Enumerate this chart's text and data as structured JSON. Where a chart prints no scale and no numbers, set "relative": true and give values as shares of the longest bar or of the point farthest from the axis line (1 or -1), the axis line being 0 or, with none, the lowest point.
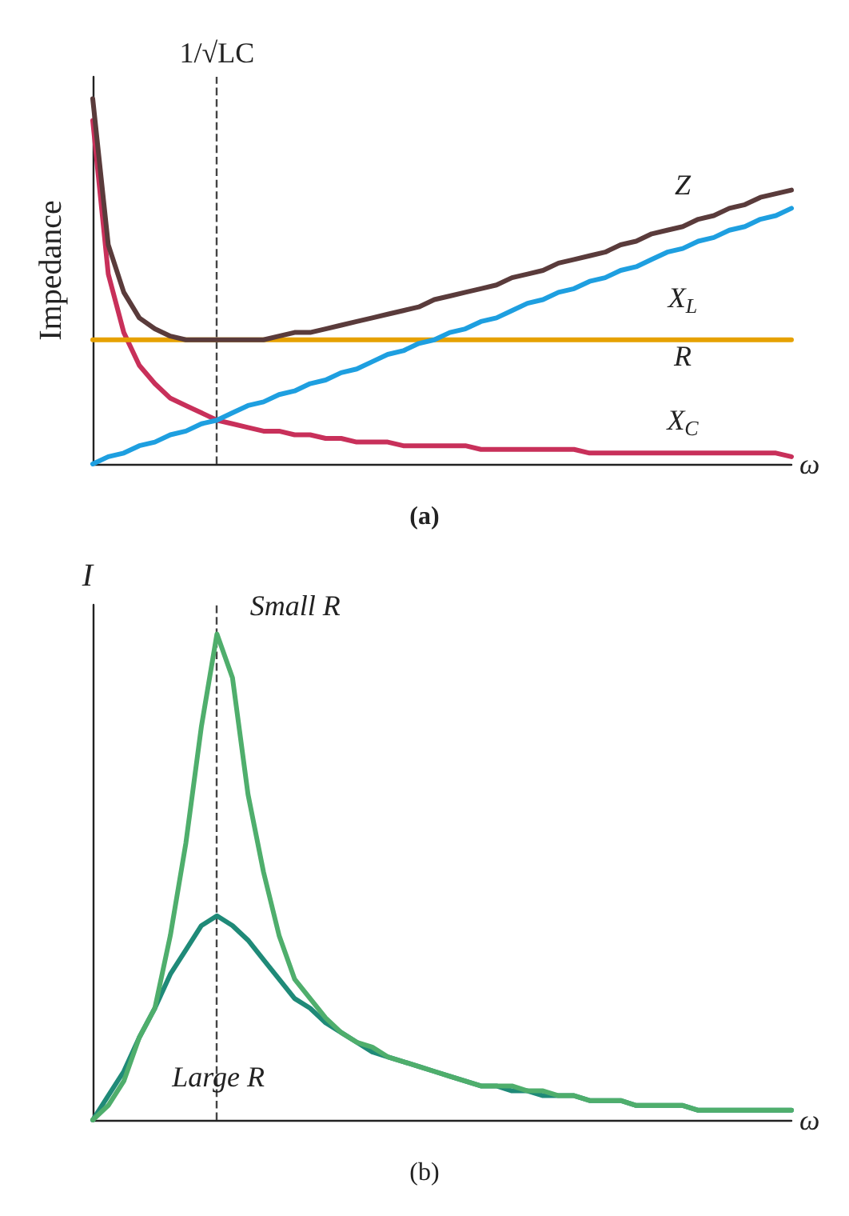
{
  "chart_data": [
    {
      "type": "line",
      "title": "(a)",
      "ylabel": "Impedance",
      "xlabel": "ω",
      "relative": true,
      "marker": "none",
      "categories": [
        null,
        null,
        null,
        null,
        null,
        null,
        null,
        null,
        null,
        null,
        null,
        null,
        null,
        null,
        null,
        null,
        null,
        null,
        null,
        null,
        null,
        null,
        null,
        null,
        null,
        null,
        null,
        null,
        null,
        null,
        null,
        null,
        null,
        null,
        null,
        null,
        null,
        null,
        null,
        null,
        null,
        null,
        null,
        null,
        null,
        null
      ],
      "annotations": [
        "1/√LC"
      ],
      "series": [
        {
          "name": "Z",
          "color": "#5a3b3b",
          "values": [
            1.0,
            0.6,
            0.47,
            0.4,
            0.37,
            0.35,
            0.34,
            0.34,
            0.34,
            0.34,
            0.34,
            0.34,
            0.35,
            0.36,
            0.36,
            0.37,
            0.38,
            0.39,
            0.4,
            0.41,
            0.42,
            0.43,
            0.45,
            0.46,
            0.47,
            0.48,
            0.49,
            0.51,
            0.52,
            0.53,
            0.55,
            0.56,
            0.57,
            0.58,
            0.6,
            0.61,
            0.63,
            0.64,
            0.65,
            0.67,
            0.68,
            0.7,
            0.71,
            0.73,
            0.74,
            0.75
          ]
        },
        {
          "name": "X$_{L}$",
          "color": "#1e9fe0",
          "values": [
            0,
            0.02,
            0.03,
            0.05,
            0.06,
            0.08,
            0.09,
            0.11,
            0.12,
            0.14,
            0.16,
            0.17,
            0.19,
            0.2,
            0.22,
            0.23,
            0.25,
            0.26,
            0.28,
            0.3,
            0.31,
            0.33,
            0.34,
            0.36,
            0.37,
            0.39,
            0.4,
            0.42,
            0.44,
            0.45,
            0.47,
            0.48,
            0.5,
            0.51,
            0.53,
            0.54,
            0.56,
            0.58,
            0.59,
            0.61,
            0.62,
            0.64,
            0.65,
            0.67,
            0.68,
            0.7
          ]
        },
        {
          "name": "R",
          "color": "#e6a100",
          "values": [
            0.34,
            0.34,
            0.34,
            0.34,
            0.34,
            0.34,
            0.34,
            0.34,
            0.34,
            0.34,
            0.34,
            0.34,
            0.34,
            0.34,
            0.34,
            0.34,
            0.34,
            0.34,
            0.34,
            0.34,
            0.34,
            0.34,
            0.34,
            0.34,
            0.34,
            0.34,
            0.34,
            0.34,
            0.34,
            0.34,
            0.34,
            0.34,
            0.34,
            0.34,
            0.34,
            0.34,
            0.34,
            0.34,
            0.34,
            0.34,
            0.34,
            0.34,
            0.34,
            0.34,
            0.34,
            0.34
          ]
        },
        {
          "name": "X$_{C}$",
          "color": "#c8305a",
          "values": [
            0.94,
            0.52,
            0.36,
            0.27,
            0.22,
            0.18,
            0.16,
            0.14,
            0.12,
            0.11,
            0.1,
            0.09,
            0.09,
            0.08,
            0.08,
            0.07,
            0.07,
            0.06,
            0.06,
            0.06,
            0.05,
            0.05,
            0.05,
            0.05,
            0.05,
            0.04,
            0.04,
            0.04,
            0.04,
            0.04,
            0.04,
            0.04,
            0.03,
            0.03,
            0.03,
            0.03,
            0.03,
            0.03,
            0.03,
            0.03,
            0.03,
            0.03,
            0.03,
            0.03,
            0.03,
            0.02
          ]
        }
      ]
    },
    {
      "type": "line",
      "title": "(b)",
      "ylabel": "I",
      "xlabel": "ω",
      "relative": true,
      "marker": "none",
      "categories": [
        null,
        null,
        null,
        null,
        null,
        null,
        null,
        null,
        null,
        null,
        null,
        null,
        null,
        null,
        null,
        null,
        null,
        null,
        null,
        null,
        null,
        null,
        null,
        null,
        null,
        null,
        null,
        null,
        null,
        null,
        null,
        null,
        null,
        null,
        null,
        null,
        null,
        null,
        null,
        null,
        null,
        null,
        null,
        null,
        null,
        null
      ],
      "series": [
        {
          "name": "Small R",
          "color": "#4fae6c",
          "values": [
            0,
            0.03,
            0.08,
            0.17,
            0.23,
            0.38,
            0.57,
            0.81,
            1,
            0.91,
            0.67,
            0.51,
            0.38,
            0.29,
            0.25,
            0.21,
            0.18,
            0.16,
            0.15,
            0.13,
            0.12,
            0.11,
            0.1,
            0.09,
            0.08,
            0.07,
            0.07,
            0.07,
            0.06,
            0.06,
            0.05,
            0.05,
            0.04,
            0.04,
            0.04,
            0.03,
            0.03,
            0.03,
            0.03,
            0.02,
            0.02,
            0.02,
            0.02,
            0.02,
            0.02,
            0.02
          ]
        },
        {
          "name": "Large R",
          "color": "#1f8a78",
          "values": [
            0,
            0.05,
            0.1,
            0.17,
            0.23,
            0.3,
            0.35,
            0.4,
            0.42,
            0.4,
            0.37,
            0.33,
            0.29,
            0.25,
            0.23,
            0.2,
            0.18,
            0.16,
            0.14,
            0.13,
            0.12,
            0.11,
            0.1,
            0.09,
            0.08,
            0.07,
            0.07,
            0.06,
            0.06,
            0.05,
            0.05,
            0.05,
            0.04,
            0.04,
            0.04,
            0.03,
            0.03,
            0.03,
            0.03,
            0.02,
            0.02,
            0.02,
            0.02,
            0.02,
            0.02,
            0.02
          ]
        }
      ]
    }
  ]
}
